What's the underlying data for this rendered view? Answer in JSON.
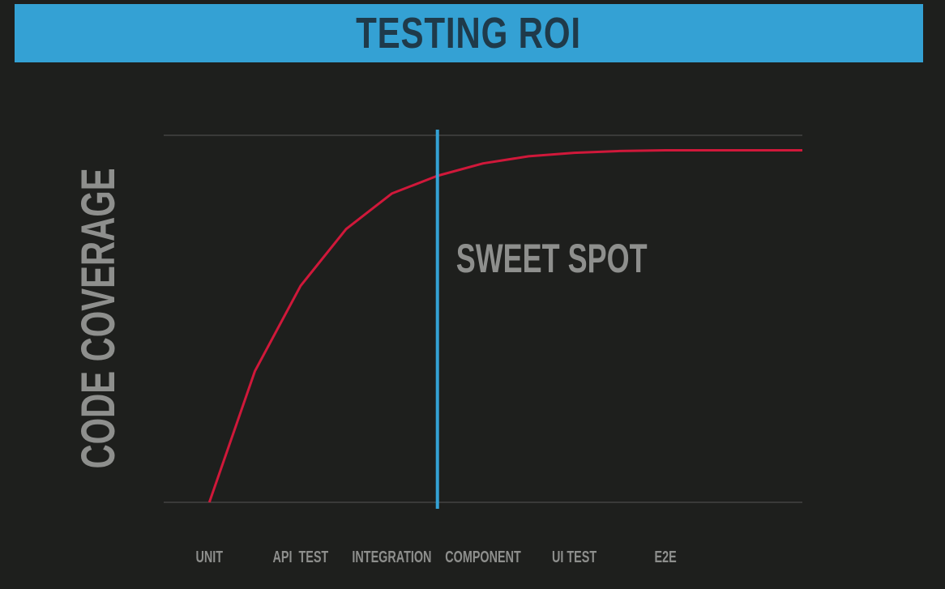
{
  "header": {
    "title": "TESTING ROI"
  },
  "colors": {
    "background": "#1e1f1d",
    "title_bar": "#34a1d4",
    "title_text": "#1f3a4a",
    "curve": "#d0183a",
    "marker_line": "#34a1d4",
    "grid_line": "#555655",
    "label_text": "#8e8f8d"
  },
  "chart_data": {
    "type": "line",
    "ylabel": "CODE COVERAGE",
    "xlabel": "",
    "categories": [
      "UNIT",
      "API  TEST",
      "INTEGRATION",
      "COMPONENT",
      "UI TEST",
      "E2E"
    ],
    "x": [
      0,
      0.5,
      1,
      1.5,
      2,
      2.5,
      3,
      3.5,
      4,
      4.5,
      5,
      5.5,
      6,
      6.5
    ],
    "y": [
      0,
      37,
      61,
      77,
      87,
      92,
      95.5,
      97.5,
      98.5,
      99,
      99.2,
      99.2,
      99.2,
      99.2
    ],
    "xlim": [
      -0.5,
      6.5
    ],
    "ylim": [
      0,
      100
    ],
    "grid": false,
    "reference_lines": [
      {
        "orientation": "horizontal",
        "value": 100
      },
      {
        "orientation": "horizontal",
        "value": 0
      }
    ],
    "marker": {
      "x": 2.5,
      "label": "SWEET SPOT"
    }
  }
}
